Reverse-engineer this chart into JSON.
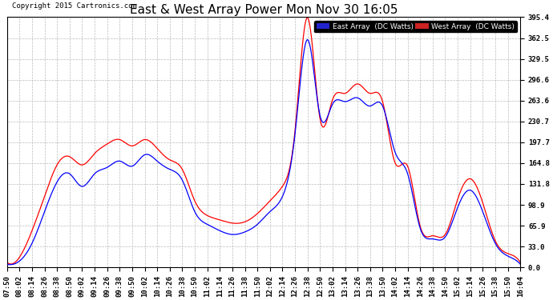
{
  "title": "East & West Array Power Mon Nov 30 16:05",
  "copyright": "Copyright 2015 Cartronics.com",
  "legend_east": "East Array  (DC Watts)",
  "legend_west": "West Array  (DC Watts)",
  "east_color": "#0000ff",
  "west_color": "#ff0000",
  "legend_east_bg": "#2222cc",
  "legend_west_bg": "#cc2222",
  "ylabel_values": [
    0.0,
    33.0,
    65.9,
    98.9,
    131.8,
    164.8,
    197.7,
    230.7,
    263.6,
    296.6,
    329.5,
    362.5,
    395.4
  ],
  "ylim": [
    0.0,
    395.4
  ],
  "background_color": "#ffffff",
  "grid_color": "#bbbbbb",
  "title_fontsize": 11,
  "tick_fontsize": 6.5,
  "x_ticks": [
    "07:50",
    "08:02",
    "08:14",
    "08:26",
    "08:38",
    "08:50",
    "09:02",
    "09:14",
    "09:26",
    "09:38",
    "09:50",
    "10:02",
    "10:14",
    "10:26",
    "10:38",
    "10:50",
    "11:02",
    "11:14",
    "11:26",
    "11:38",
    "11:50",
    "12:02",
    "12:14",
    "12:26",
    "12:38",
    "12:50",
    "13:02",
    "13:14",
    "13:26",
    "13:38",
    "13:50",
    "14:02",
    "14:14",
    "14:26",
    "14:38",
    "14:50",
    "15:02",
    "15:14",
    "15:26",
    "15:38",
    "15:50",
    "16:04"
  ],
  "east_data": [
    5,
    10,
    35,
    85,
    130,
    145,
    130,
    155,
    175,
    175,
    165,
    185,
    170,
    155,
    135,
    90,
    68,
    58,
    52,
    58,
    70,
    90,
    110,
    205,
    360,
    248,
    258,
    268,
    278,
    268,
    255,
    180,
    148,
    62,
    48,
    48,
    95,
    120,
    88,
    38,
    18,
    5
  ],
  "west_data": [
    8,
    15,
    55,
    110,
    160,
    175,
    165,
    185,
    200,
    205,
    195,
    205,
    190,
    172,
    158,
    108,
    85,
    78,
    72,
    75,
    88,
    108,
    128,
    215,
    398,
    238,
    268,
    280,
    295,
    280,
    265,
    168,
    162,
    68,
    52,
    55,
    112,
    142,
    105,
    45,
    25,
    10
  ]
}
